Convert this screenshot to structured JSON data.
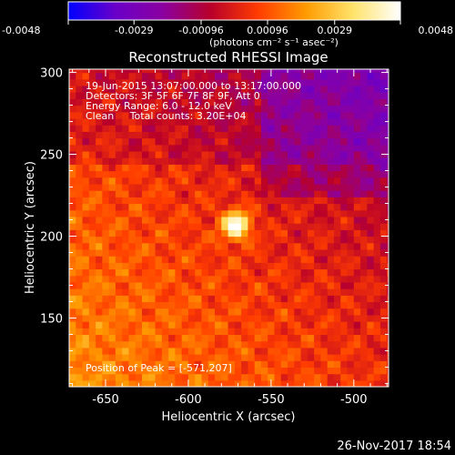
{
  "colorbar": {
    "tick_labels": [
      "-0.0048",
      "-0.0029",
      "-0.00096",
      "0.00096",
      "0.0029",
      "0.0048"
    ],
    "tick_values": [
      -0.0048,
      -0.0029,
      -0.00096,
      0.00096,
      0.0029,
      0.0048
    ],
    "range": [
      -0.0048,
      0.0048
    ],
    "unit_label": "(photons cm⁻² s⁻¹ asec⁻²)",
    "colormap": [
      "#0000ff",
      "#6a00c8",
      "#8b00a0",
      "#b8002a",
      "#ff3c00",
      "#ff9a00",
      "#ffe36a",
      "#ffffff"
    ]
  },
  "chart_data": {
    "type": "heatmap",
    "title": "Reconstructed RHESSI Image",
    "xlabel": "Heliocentric X (arcsec)",
    "ylabel": "Heliocentric Y (arcsec)",
    "xlim": [
      -672,
      -479
    ],
    "ylim": [
      108,
      302
    ],
    "x_ticks": [
      -650,
      -600,
      -550,
      -500
    ],
    "x_tick_labels": [
      "-650",
      "-600",
      "-550",
      "-500"
    ],
    "y_ticks": [
      150,
      200,
      250,
      300
    ],
    "y_tick_labels": [
      "150",
      "200",
      "250",
      "300"
    ],
    "annotations": [
      "19-Jun-2015 13:07:00.000 to 13:17:00.000",
      "Detectors: 3F 5F 6F 7F 8F 9F, Att 0",
      "Energy Range: 6.0 - 12.0 keV",
      "Clean     Total counts: 3.20E+04"
    ],
    "peak_label": "Position of Peak = [-571,207]",
    "peak": [
      -571,
      207
    ],
    "peak_value": 0.0048,
    "grid": false,
    "legend": "none"
  },
  "footer": {
    "timestamp": "26-Nov-2017 18:54"
  }
}
